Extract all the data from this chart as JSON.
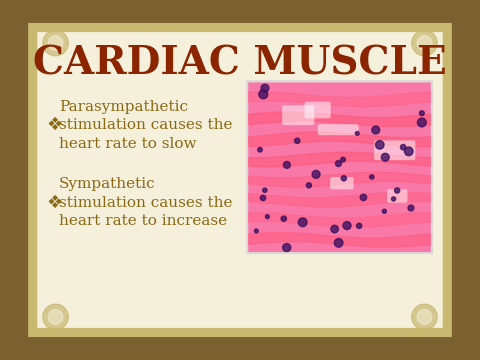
{
  "title": "CARDIAC MUSCLE",
  "title_color": "#8B2500",
  "title_fontsize": 28,
  "bullet_symbol": "❖",
  "bullet_color": "#8B6914",
  "bullet_fontsize": 13,
  "bullets": [
    "Parasympathetic\nstimulation causes the\nheart rate to slow",
    "Sympathetic\nstimulation causes the\nheart rate to increase"
  ],
  "bg_color": "#F5F0DC",
  "border_outer_color": "#7B6030",
  "border_inner_color": "#C8B870",
  "image_placeholder_color": "#F080A0",
  "slide_bg": "#EDE8C8"
}
